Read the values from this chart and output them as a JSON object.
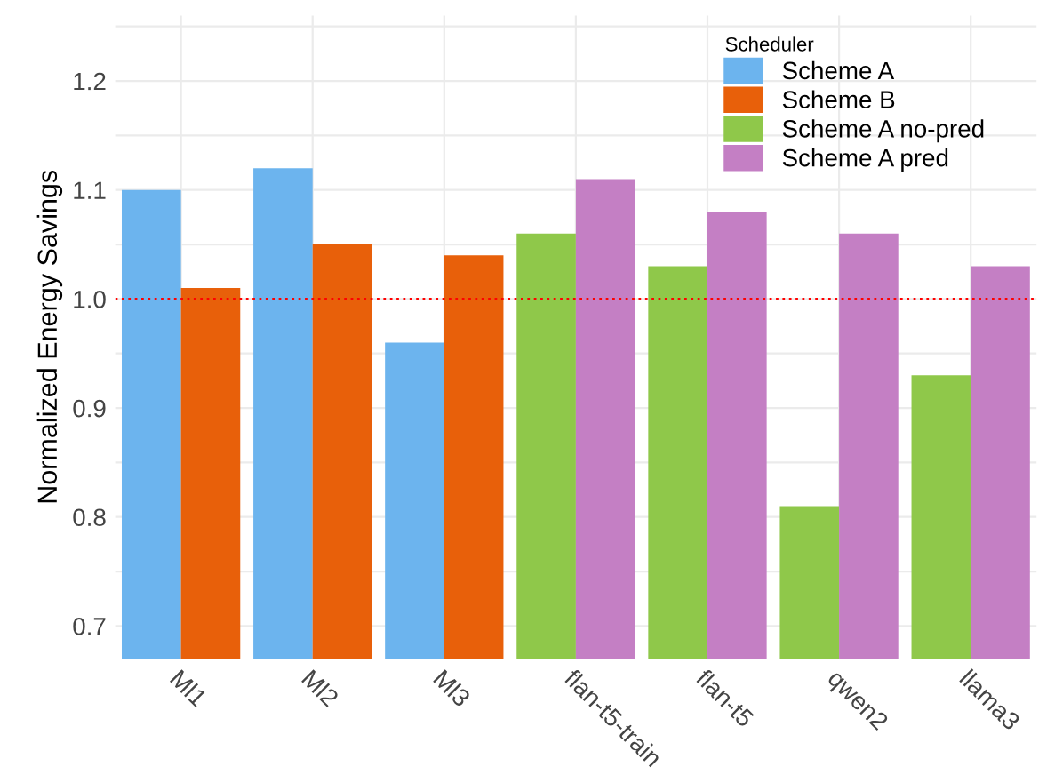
{
  "chart_data": {
    "type": "bar",
    "ylabel": "Normalized Energy Savings",
    "legend_title": "Scheduler",
    "legend": "top right",
    "grid": true,
    "categories": [
      "Ml1",
      "Ml2",
      "Ml3",
      "flan-t5-train",
      "flan-t5",
      "qwen2",
      "llama3"
    ],
    "series": [
      {
        "name": "Scheme A",
        "color": "#6cb4ee",
        "values": [
          1.1,
          1.12,
          0.96,
          null,
          null,
          null,
          null
        ]
      },
      {
        "name": "Scheme B",
        "color": "#e8600a",
        "values": [
          1.01,
          1.05,
          1.04,
          null,
          null,
          null,
          null
        ]
      },
      {
        "name": "Scheme A no-pred",
        "color": "#8fc84a",
        "values": [
          null,
          null,
          null,
          1.06,
          1.03,
          0.81,
          0.93
        ]
      },
      {
        "name": "Scheme A pred",
        "color": "#c47fc4",
        "values": [
          null,
          null,
          null,
          1.11,
          1.08,
          1.06,
          1.03
        ]
      }
    ],
    "ylim": [
      0.67,
      1.26
    ],
    "yticks": [
      0.7,
      {
        "value": 0.75,
        "label": null
      },
      0.8,
      {
        "value": 0.85,
        "label": null
      },
      0.9,
      {
        "value": 0.95,
        "label": null
      },
      {
        "value": 1.0,
        "label": "1.0"
      },
      {
        "value": 1.05,
        "label": null
      },
      1.1,
      {
        "value": 1.15,
        "label": null
      },
      1.2,
      {
        "value": 1.25,
        "label": null
      }
    ],
    "ref_lines": [
      {
        "axis": "y",
        "value": 1.0,
        "color": "#ff0000",
        "line_style": "dotted"
      }
    ]
  }
}
